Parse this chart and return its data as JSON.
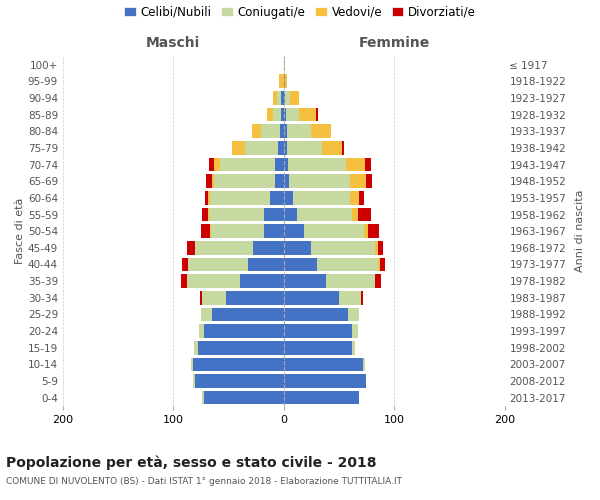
{
  "age_groups": [
    "0-4",
    "5-9",
    "10-14",
    "15-19",
    "20-24",
    "25-29",
    "30-34",
    "35-39",
    "40-44",
    "45-49",
    "50-54",
    "55-59",
    "60-64",
    "65-69",
    "70-74",
    "75-79",
    "80-84",
    "85-89",
    "90-94",
    "95-99",
    "100+"
  ],
  "birth_years": [
    "2013-2017",
    "2008-2012",
    "2003-2007",
    "1998-2002",
    "1993-1997",
    "1988-1992",
    "1983-1987",
    "1978-1982",
    "1973-1977",
    "1968-1972",
    "1963-1967",
    "1958-1962",
    "1953-1957",
    "1948-1952",
    "1943-1947",
    "1938-1942",
    "1933-1937",
    "1928-1932",
    "1923-1927",
    "1918-1922",
    "≤ 1917"
  ],
  "colors": {
    "celibe": "#4472c4",
    "coniugato": "#c5d9a0",
    "vedovo": "#f5c040",
    "divorziato": "#cc0000"
  },
  "maschi": {
    "celibe": [
      72,
      80,
      82,
      78,
      72,
      65,
      52,
      40,
      32,
      28,
      18,
      18,
      12,
      8,
      8,
      5,
      3,
      2,
      2,
      0,
      0
    ],
    "coniugato": [
      2,
      2,
      2,
      3,
      5,
      10,
      22,
      48,
      55,
      52,
      48,
      50,
      55,
      55,
      50,
      30,
      18,
      8,
      4,
      0,
      0
    ],
    "vedovo": [
      0,
      0,
      0,
      0,
      0,
      0,
      0,
      0,
      0,
      0,
      1,
      1,
      2,
      2,
      5,
      12,
      8,
      5,
      4,
      4,
      0
    ],
    "divorziato": [
      0,
      0,
      0,
      0,
      0,
      0,
      2,
      5,
      5,
      8,
      8,
      5,
      2,
      5,
      5,
      0,
      0,
      0,
      0,
      0,
      0
    ]
  },
  "femmine": {
    "nubile": [
      68,
      75,
      72,
      62,
      62,
      58,
      50,
      38,
      30,
      25,
      18,
      12,
      8,
      5,
      4,
      3,
      3,
      2,
      1,
      1,
      0
    ],
    "coniugata": [
      0,
      0,
      2,
      3,
      5,
      10,
      20,
      45,
      55,
      58,
      55,
      50,
      52,
      55,
      52,
      32,
      22,
      12,
      5,
      0,
      0
    ],
    "vedova": [
      0,
      0,
      0,
      0,
      0,
      0,
      0,
      0,
      2,
      2,
      3,
      5,
      8,
      15,
      18,
      18,
      18,
      15,
      8,
      2,
      1
    ],
    "divorziata": [
      0,
      0,
      0,
      0,
      0,
      0,
      2,
      5,
      5,
      5,
      10,
      12,
      5,
      5,
      5,
      2,
      0,
      2,
      0,
      0,
      0
    ]
  },
  "xlim": 200,
  "title": "Popolazione per età, sesso e stato civile - 2018",
  "subtitle": "COMUNE DI NUVOLENTO (BS) - Dati ISTAT 1° gennaio 2018 - Elaborazione TUTTITALIA.IT",
  "ylabel_left": "Fasce di età",
  "ylabel_right": "Anni di nascita",
  "xlabel_left": "Maschi",
  "xlabel_right": "Femmine",
  "grid_color": "#cccccc"
}
